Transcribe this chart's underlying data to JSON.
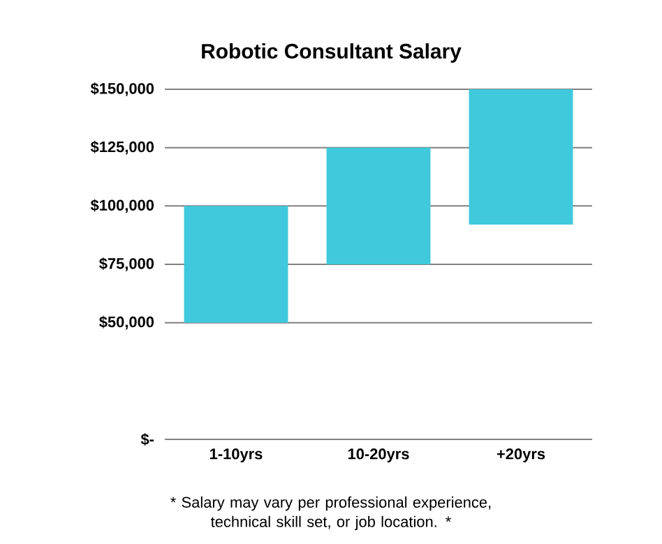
{
  "chart_data": {
    "type": "bar",
    "title": "Robotic Consultant Salary",
    "categories": [
      "1-10yrs",
      "10-20yrs",
      "+20yrs"
    ],
    "values": [
      50000,
      50000,
      58000
    ],
    "base": [
      50000,
      75000,
      92000
    ],
    "color": "#40c9dc",
    "ylim": [
      0,
      150000
    ],
    "yticks": [
      {
        "value": 0,
        "label": "$-"
      },
      {
        "value": 50000,
        "label": "$50,000"
      },
      {
        "value": 75000,
        "label": "$75,000"
      },
      {
        "value": 100000,
        "label": "$100,000"
      },
      {
        "value": 125000,
        "label": "$125,000"
      },
      {
        "value": 150000,
        "label": "$150,000"
      }
    ],
    "grid": "y",
    "annotations": [
      "* Salary may vary per professional experience, technical skill set, or job location. *"
    ]
  }
}
